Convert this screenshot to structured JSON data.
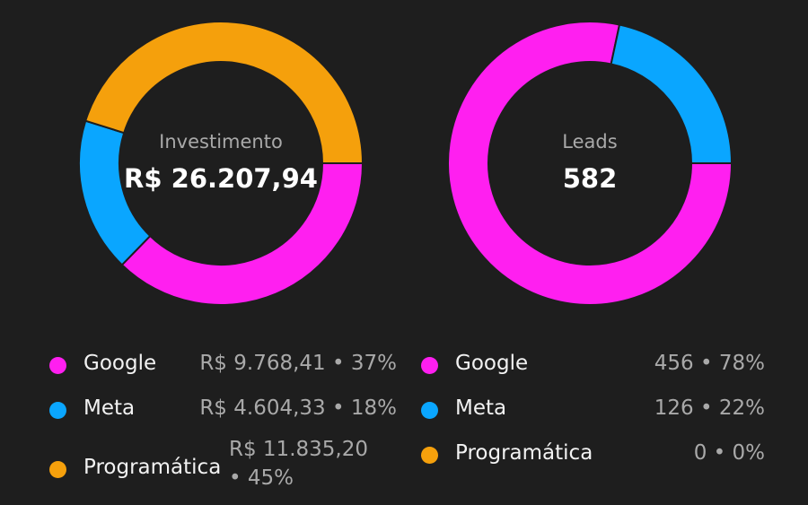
{
  "colors": {
    "google": "#ff1ff0",
    "meta": "#0aa6ff",
    "programatica": "#f5a00c",
    "background": "#1e1e1e"
  },
  "chart_data": [
    {
      "type": "donut",
      "center_label": "Investimento",
      "center_value": "R$ 26.207,94",
      "categories": [
        "Google",
        "Meta",
        "Programática"
      ],
      "values": [
        9768.41,
        4604.33,
        11835.2
      ],
      "percents": [
        37,
        18,
        45
      ],
      "value_labels": [
        "R$ 9.768,41 • 37%",
        "R$ 4.604,33 • 18%",
        "R$ 11.835,20 • 45%"
      ]
    },
    {
      "type": "donut",
      "center_label": "Leads",
      "center_value": "582",
      "categories": [
        "Google",
        "Meta",
        "Programática"
      ],
      "values": [
        456,
        126,
        0
      ],
      "percents": [
        78,
        22,
        0
      ],
      "value_labels": [
        "456 • 78%",
        "126 • 22%",
        "0 • 0%"
      ]
    }
  ]
}
